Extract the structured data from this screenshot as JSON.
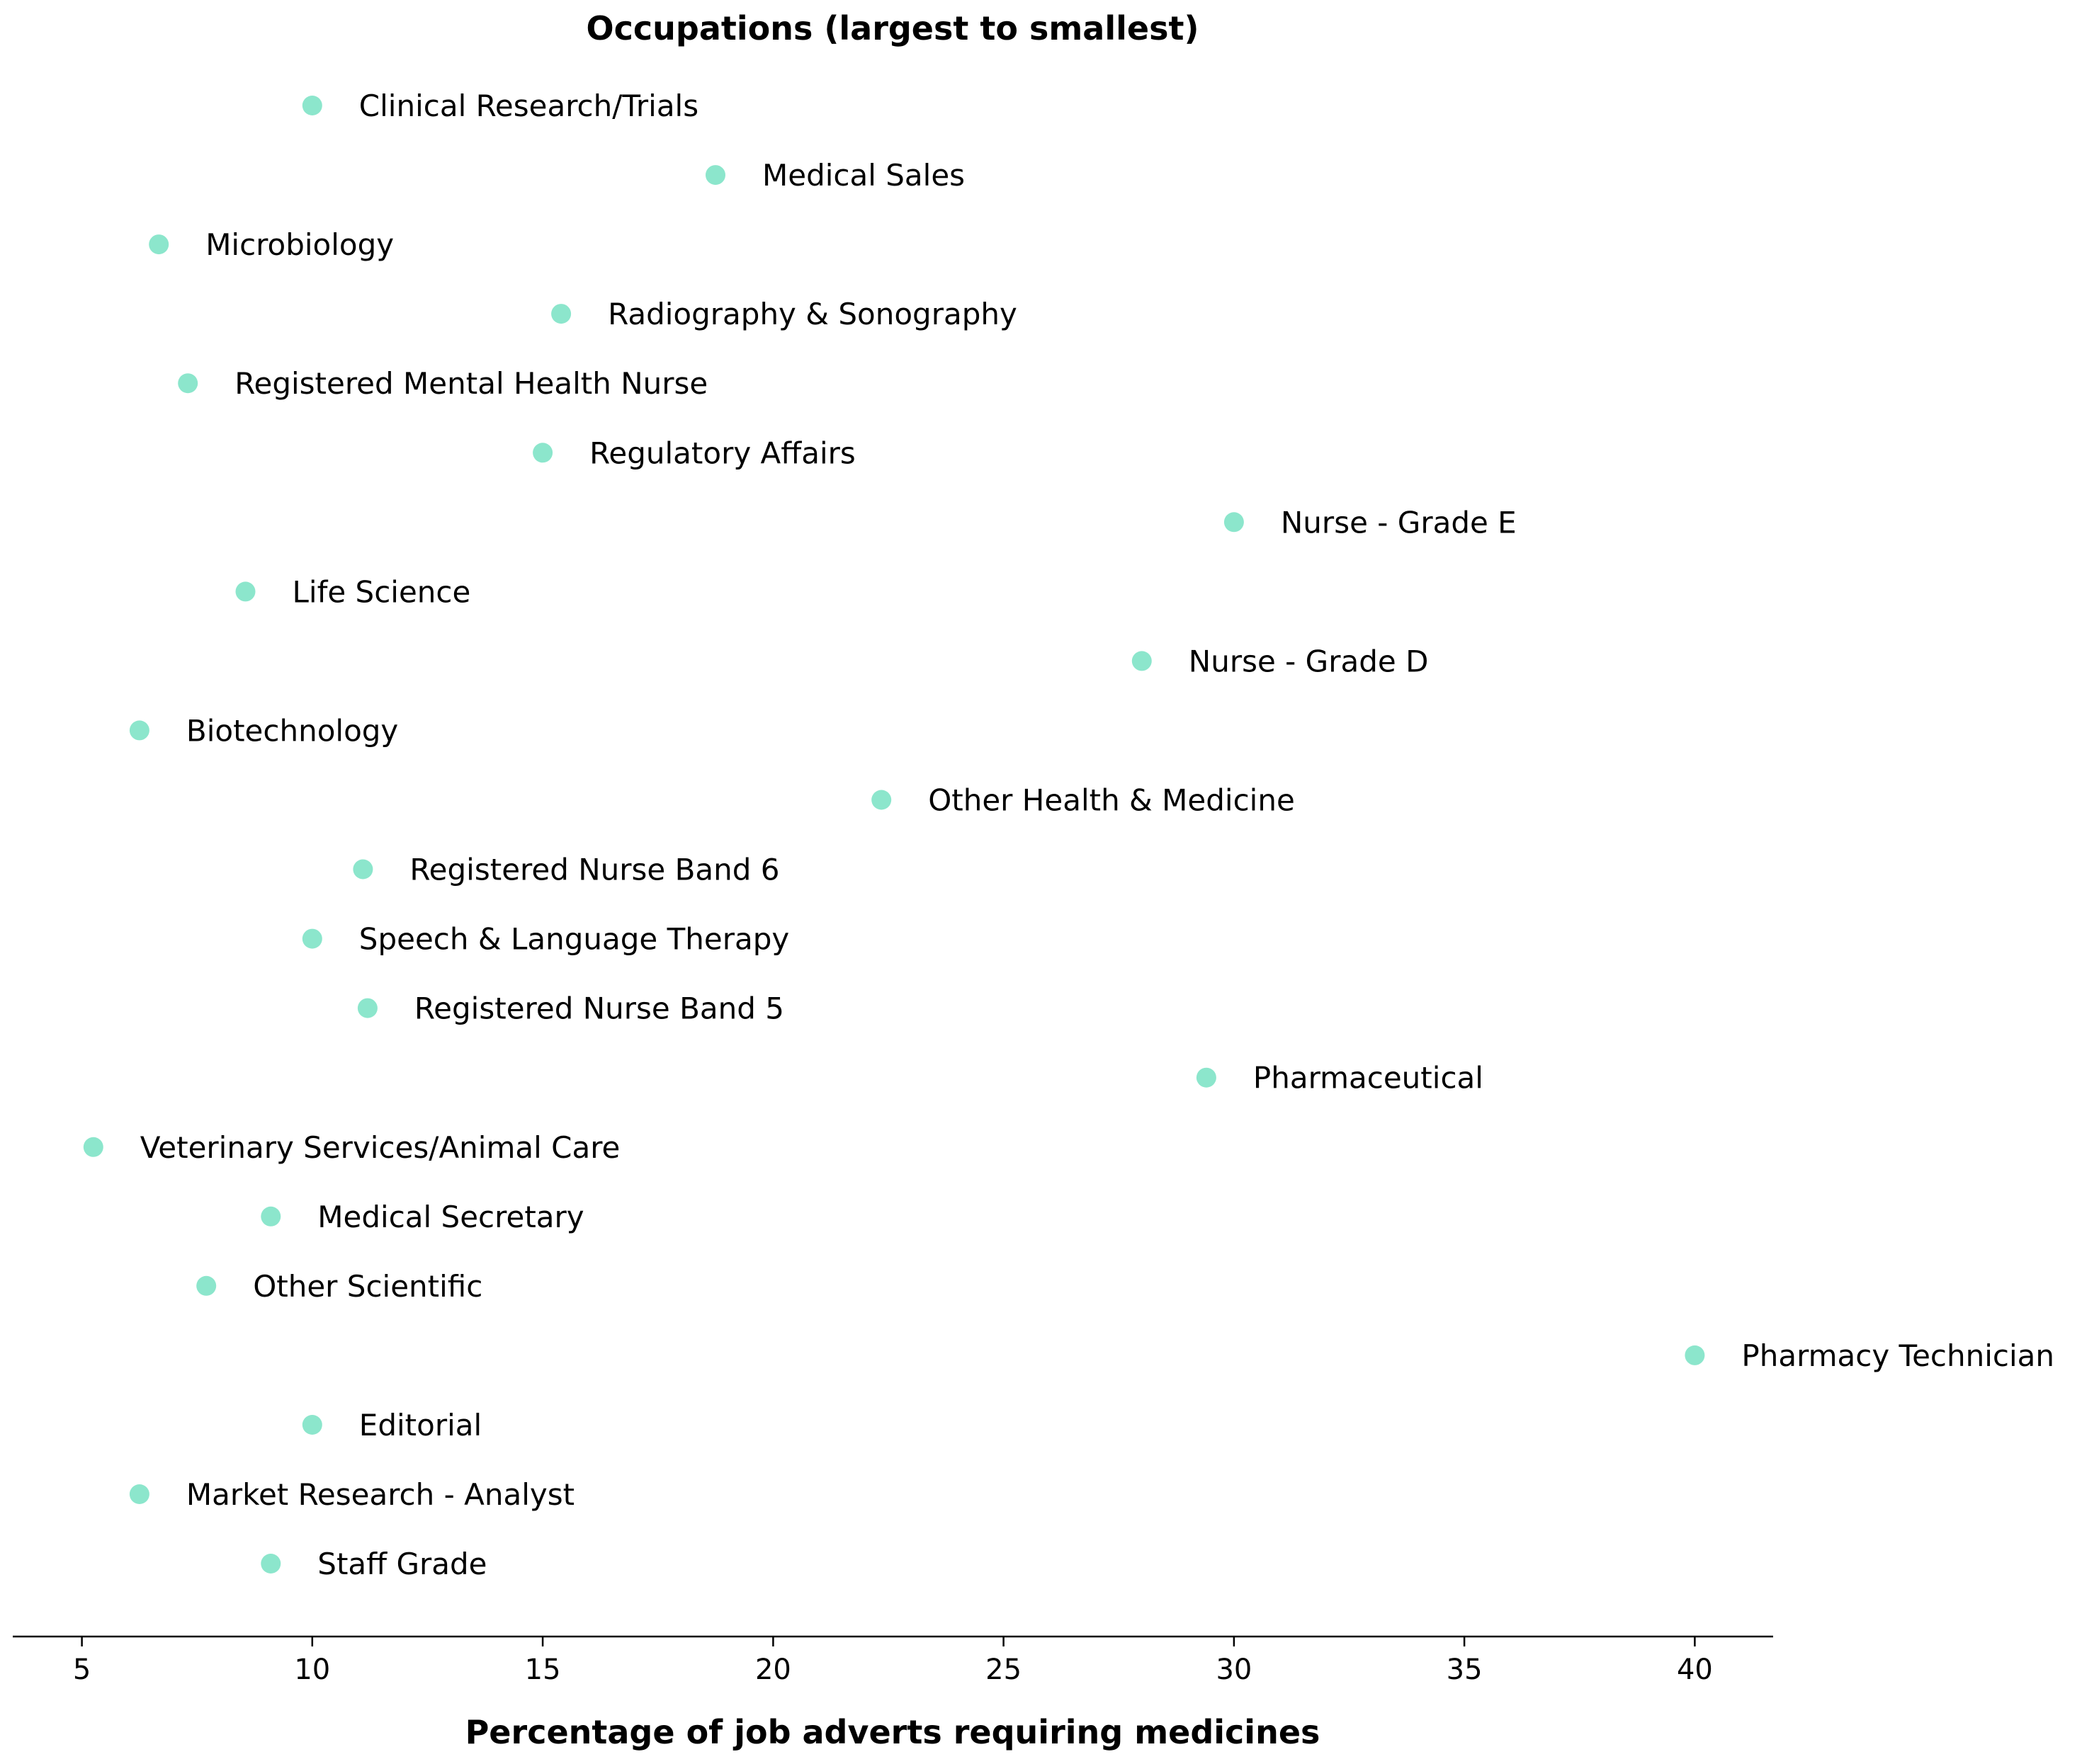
{
  "chart_data": {
    "type": "scatter",
    "title": "Occupations (largest to smallest)",
    "xlabel": "Percentage of job adverts requiring medicines",
    "ylabel": "",
    "xlim": [
      3.5,
      41.7
    ],
    "xticks": [
      5,
      10,
      15,
      20,
      25,
      30,
      35,
      40
    ],
    "grid": false,
    "marker_color": "#66ddbb",
    "points": [
      {
        "label": "Clinical Research/Trials",
        "x": 10.0
      },
      {
        "label": "Medical Sales",
        "x": 18.75
      },
      {
        "label": "Microbiology",
        "x": 6.67
      },
      {
        "label": "Radiography & Sonography",
        "x": 15.4
      },
      {
        "label": "Registered Mental Health Nurse",
        "x": 7.3
      },
      {
        "label": "Regulatory Affairs",
        "x": 15.0
      },
      {
        "label": "Nurse - Grade E",
        "x": 30.0
      },
      {
        "label": "Life Science",
        "x": 8.55
      },
      {
        "label": "Nurse - Grade D",
        "x": 28.0
      },
      {
        "label": "Biotechnology",
        "x": 6.25
      },
      {
        "label": "Other Health & Medicine",
        "x": 22.35
      },
      {
        "label": "Registered Nurse Band 6",
        "x": 11.1
      },
      {
        "label": "Speech & Language Therapy",
        "x": 10.0
      },
      {
        "label": "Registered Nurse Band 5",
        "x": 11.2
      },
      {
        "label": "Pharmaceutical",
        "x": 29.4
      },
      {
        "label": "Veterinary Services/Animal Care",
        "x": 5.25
      },
      {
        "label": "Medical Secretary",
        "x": 9.1
      },
      {
        "label": "Other Scientific",
        "x": 7.7
      },
      {
        "label": "Pharmacy Technician",
        "x": 40.0
      },
      {
        "label": "Editorial",
        "x": 10.0
      },
      {
        "label": "Market Research - Analyst",
        "x": 6.25
      },
      {
        "label": "Staff Grade",
        "x": 9.1
      }
    ]
  }
}
